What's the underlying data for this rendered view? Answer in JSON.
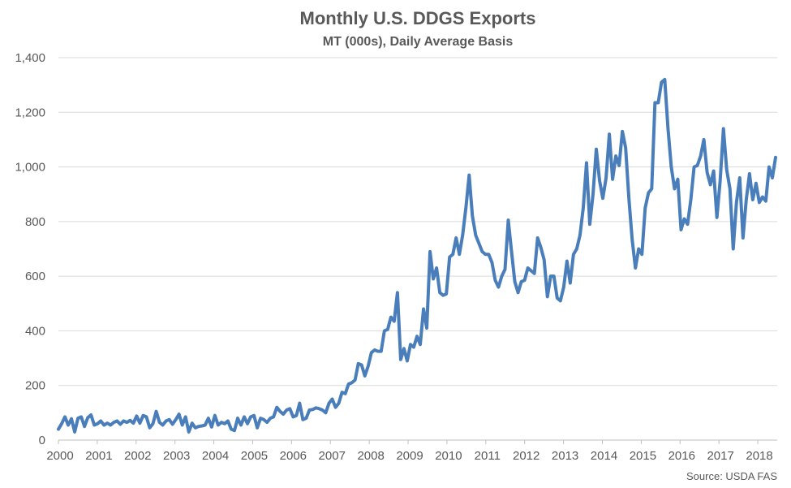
{
  "chart_data": {
    "type": "line",
    "title": "Monthly U.S. DDGS Exports",
    "subtitle": "MT (000s), Daily Average Basis",
    "xlabel": "",
    "ylabel": "",
    "source": "Source: USDA FAS",
    "ylim": [
      0,
      1400
    ],
    "yticks": [
      "0",
      "200",
      "400",
      "600",
      "800",
      "1,000",
      "1,200",
      "1,400"
    ],
    "xticks": [
      "2000",
      "2001",
      "2002",
      "2003",
      "2004",
      "2005",
      "2006",
      "2007",
      "2008",
      "2009",
      "2010",
      "2011",
      "2012",
      "2013",
      "2014",
      "2015",
      "2016",
      "2017",
      "2018"
    ],
    "grid": "horizontal",
    "legend": "none",
    "colors": {
      "line": "#4a7ebb",
      "grid": "#d9d9d9",
      "axis": "#bfbfbf"
    },
    "series": [
      {
        "x_start": "2000-01",
        "x_end": "2018-06",
        "values": [
          40,
          60,
          85,
          55,
          78,
          30,
          80,
          85,
          50,
          82,
          92,
          55,
          60,
          70,
          55,
          62,
          55,
          65,
          70,
          58,
          70,
          65,
          72,
          62,
          88,
          62,
          90,
          85,
          45,
          60,
          105,
          65,
          55,
          70,
          75,
          58,
          75,
          95,
          55,
          85,
          30,
          62,
          45,
          50,
          52,
          55,
          80,
          48,
          90,
          55,
          65,
          60,
          70,
          40,
          35,
          80,
          55,
          85,
          60,
          85,
          90,
          45,
          80,
          75,
          65,
          80,
          85,
          120,
          105,
          95,
          110,
          115,
          85,
          90,
          135,
          75,
          80,
          110,
          112,
          118,
          115,
          110,
          100,
          135,
          150,
          120,
          135,
          175,
          170,
          205,
          210,
          220,
          280,
          275,
          235,
          270,
          320,
          330,
          325,
          325,
          400,
          405,
          450,
          435,
          540,
          295,
          335,
          290,
          350,
          340,
          380,
          350,
          480,
          410,
          690,
          590,
          630,
          540,
          530,
          535,
          670,
          680,
          740,
          680,
          750,
          850,
          970,
          820,
          750,
          720,
          690,
          680,
          680,
          650,
          585,
          560,
          600,
          625,
          805,
          690,
          580,
          540,
          580,
          585,
          630,
          620,
          610,
          740,
          705,
          660,
          525,
          600,
          600,
          520,
          510,
          560,
          655,
          575,
          680,
          700,
          750,
          850,
          1015,
          790,
          900,
          1065,
          950,
          885,
          960,
          1120,
          955,
          1040,
          1005,
          1130,
          1070,
          885,
          735,
          630,
          700,
          680,
          850,
          905,
          920,
          1235,
          1235,
          1310,
          1320,
          1140,
          1000,
          920,
          955,
          770,
          810,
          790,
          880,
          1000,
          1005,
          1040,
          1100,
          980,
          935,
          985,
          815,
          950,
          1140,
          990,
          920,
          700,
          870,
          960,
          740,
          880,
          975,
          880,
          940,
          870,
          890,
          875,
          1000,
          960,
          1035
        ]
      }
    ]
  }
}
